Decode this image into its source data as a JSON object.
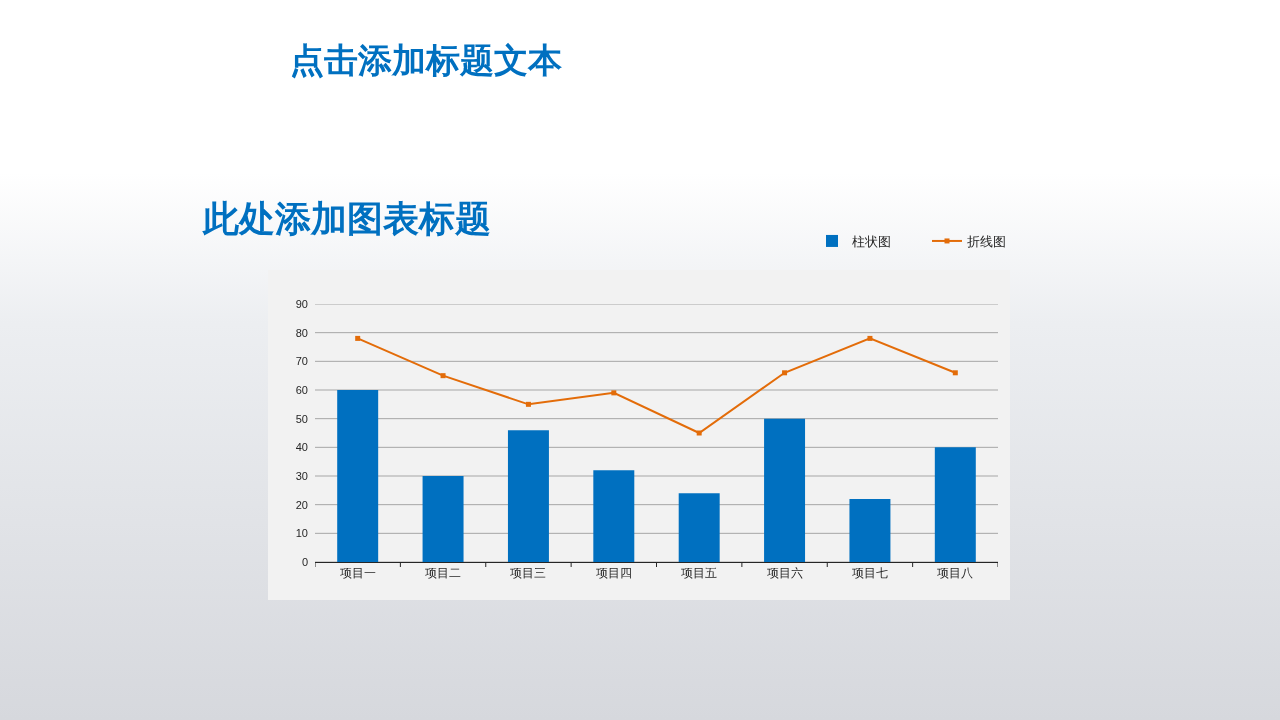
{
  "chart_data": {
    "type": "bar",
    "title": "点击添加标题文本",
    "subtitle": "此处添加图表标题",
    "categories": [
      "项目一",
      "项目二",
      "项目三",
      "项目四",
      "项目五",
      "项目六",
      "项目七",
      "项目八"
    ],
    "series": [
      {
        "name": "柱状图",
        "color": "#0070c0",
        "values": [
          60,
          30,
          46,
          32,
          24,
          50,
          22,
          40
        ]
      },
      {
        "name": "折线图",
        "type": "line",
        "color": "#e36c09",
        "values": [
          78,
          65,
          55,
          59,
          45,
          66,
          78,
          66
        ]
      }
    ],
    "ylim": [
      0,
      90
    ],
    "yticks": [
      0,
      10,
      20,
      30,
      40,
      50,
      60,
      70,
      80,
      90
    ],
    "grid": "y",
    "legend": "top right",
    "marker": "square",
    "line_style": "solid"
  }
}
